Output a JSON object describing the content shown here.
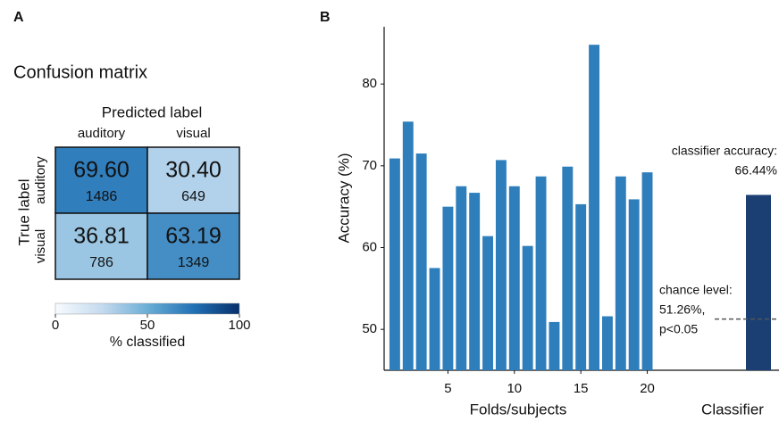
{
  "chart_data": [
    {
      "type": "heatmap",
      "panel": "A",
      "title": "Confusion matrix",
      "x_label": "Predicted label",
      "y_label": "True label",
      "x_categories": [
        "auditory",
        "visual"
      ],
      "y_categories": [
        "auditory",
        "visual"
      ],
      "values": [
        [
          69.6,
          30.4
        ],
        [
          36.81,
          63.19
        ]
      ],
      "value_labels": [
        [
          "69.60",
          "30.40"
        ],
        [
          "36.81",
          "63.19"
        ]
      ],
      "counts": [
        [
          1486,
          649
        ],
        [
          786,
          1349
        ]
      ],
      "colors": [
        "#f7fbff",
        "#c6dbef",
        "#6baed6",
        "#2171b5",
        "#08306b"
      ],
      "clim": [
        0,
        100
      ],
      "colorbar_ticks": [
        0,
        50,
        100
      ],
      "colorbar_label": "% classified"
    },
    {
      "type": "bar",
      "panel": "B",
      "y_label": "Accuracy (%)",
      "x_label": "Folds/subjects",
      "x": [
        1,
        2,
        3,
        4,
        5,
        6,
        7,
        8,
        9,
        10,
        11,
        12,
        13,
        14,
        15,
        16,
        17,
        18,
        19,
        20
      ],
      "values": [
        70.9,
        75.4,
        71.5,
        57.5,
        65,
        67.5,
        66.7,
        61.4,
        70.7,
        67.5,
        60.2,
        68.7,
        50.9,
        69.9,
        65.3,
        84.8,
        51.6,
        68.7,
        65.9,
        69.2
      ],
      "color": "#2e7ebc",
      "xlim": [
        0.2,
        20.5
      ],
      "xticks": [
        5,
        10,
        15,
        20
      ],
      "ylim": [
        45,
        87
      ],
      "yticks": [
        50,
        60,
        70,
        80
      ],
      "classifier_label": "Classifier",
      "classifier_value": 66.44,
      "classifier_color": "#1b3f73",
      "classifier_annotation": [
        "classifier accuracy:",
        "66.44%"
      ],
      "chance_level": 51.26,
      "chance_annotation": [
        "chance level:",
        "51.26%,",
        "p<0.05"
      ]
    }
  ]
}
